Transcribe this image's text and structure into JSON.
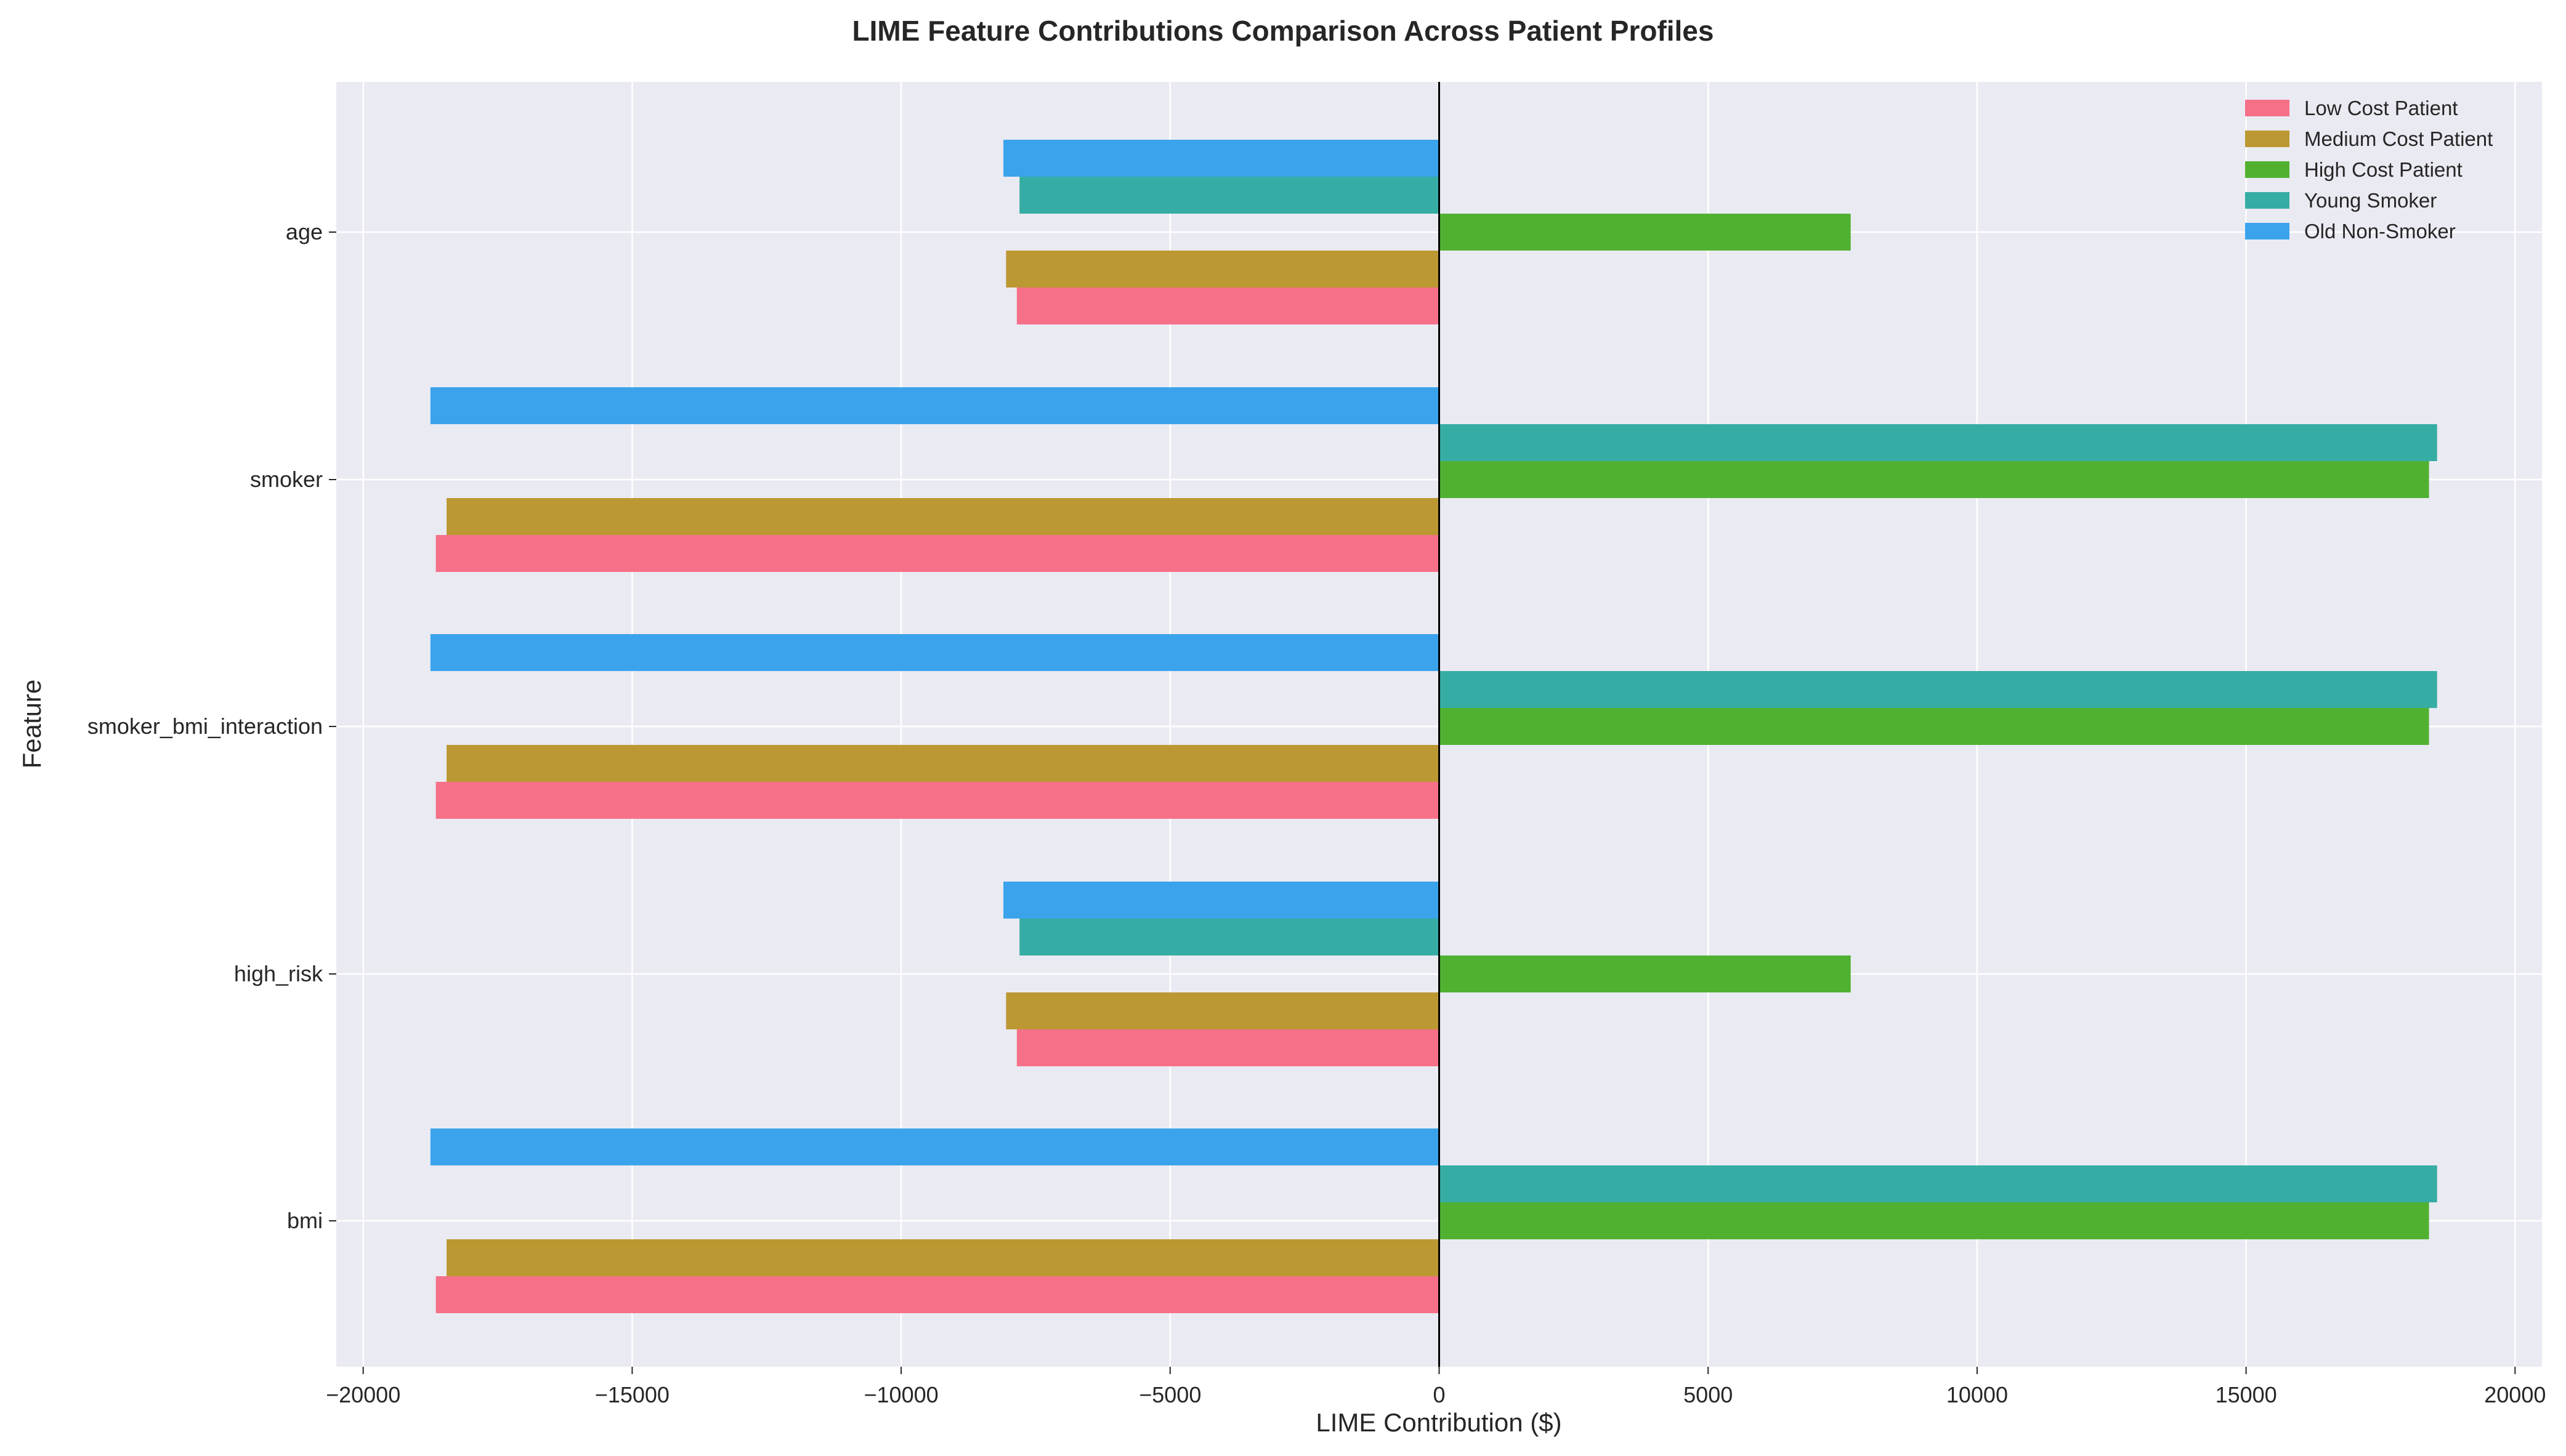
{
  "chart_data": {
    "type": "bar",
    "orientation": "horizontal",
    "title": "LIME Feature Contributions Comparison Across Patient Profiles",
    "xlabel": "LIME Contribution ($)",
    "ylabel": "Feature",
    "xlim": [
      -20500,
      20500
    ],
    "xticks": [
      -20000,
      -15000,
      -10000,
      -5000,
      0,
      5000,
      10000,
      15000,
      20000
    ],
    "xtick_labels": [
      "−20000",
      "−15000",
      "−10000",
      "−5000",
      "0",
      "5000",
      "10000",
      "15000",
      "20000"
    ],
    "categories": [
      "age",
      "smoker",
      "smoker_bmi_interaction",
      "high_risk",
      "bmi"
    ],
    "grid": true,
    "legend_position": "top-right",
    "series": [
      {
        "name": "Low Cost Patient",
        "color": "#f67088",
        "values": [
          -7850,
          -18650,
          -18650,
          -7850,
          -18650
        ]
      },
      {
        "name": "Medium Cost Patient",
        "color": "#bb9832",
        "values": [
          -8050,
          -18450,
          -18450,
          -8050,
          -18450
        ]
      },
      {
        "name": "High Cost Patient",
        "color": "#50b131",
        "values": [
          7650,
          18400,
          18400,
          7650,
          18400
        ]
      },
      {
        "name": "Young Smoker",
        "color": "#36ada4",
        "values": [
          -7800,
          18550,
          18550,
          -7800,
          18550
        ]
      },
      {
        "name": "Old Non-Smoker",
        "color": "#3ba3ec",
        "values": [
          -8100,
          -18750,
          -18750,
          -8100,
          -18750
        ]
      }
    ]
  }
}
